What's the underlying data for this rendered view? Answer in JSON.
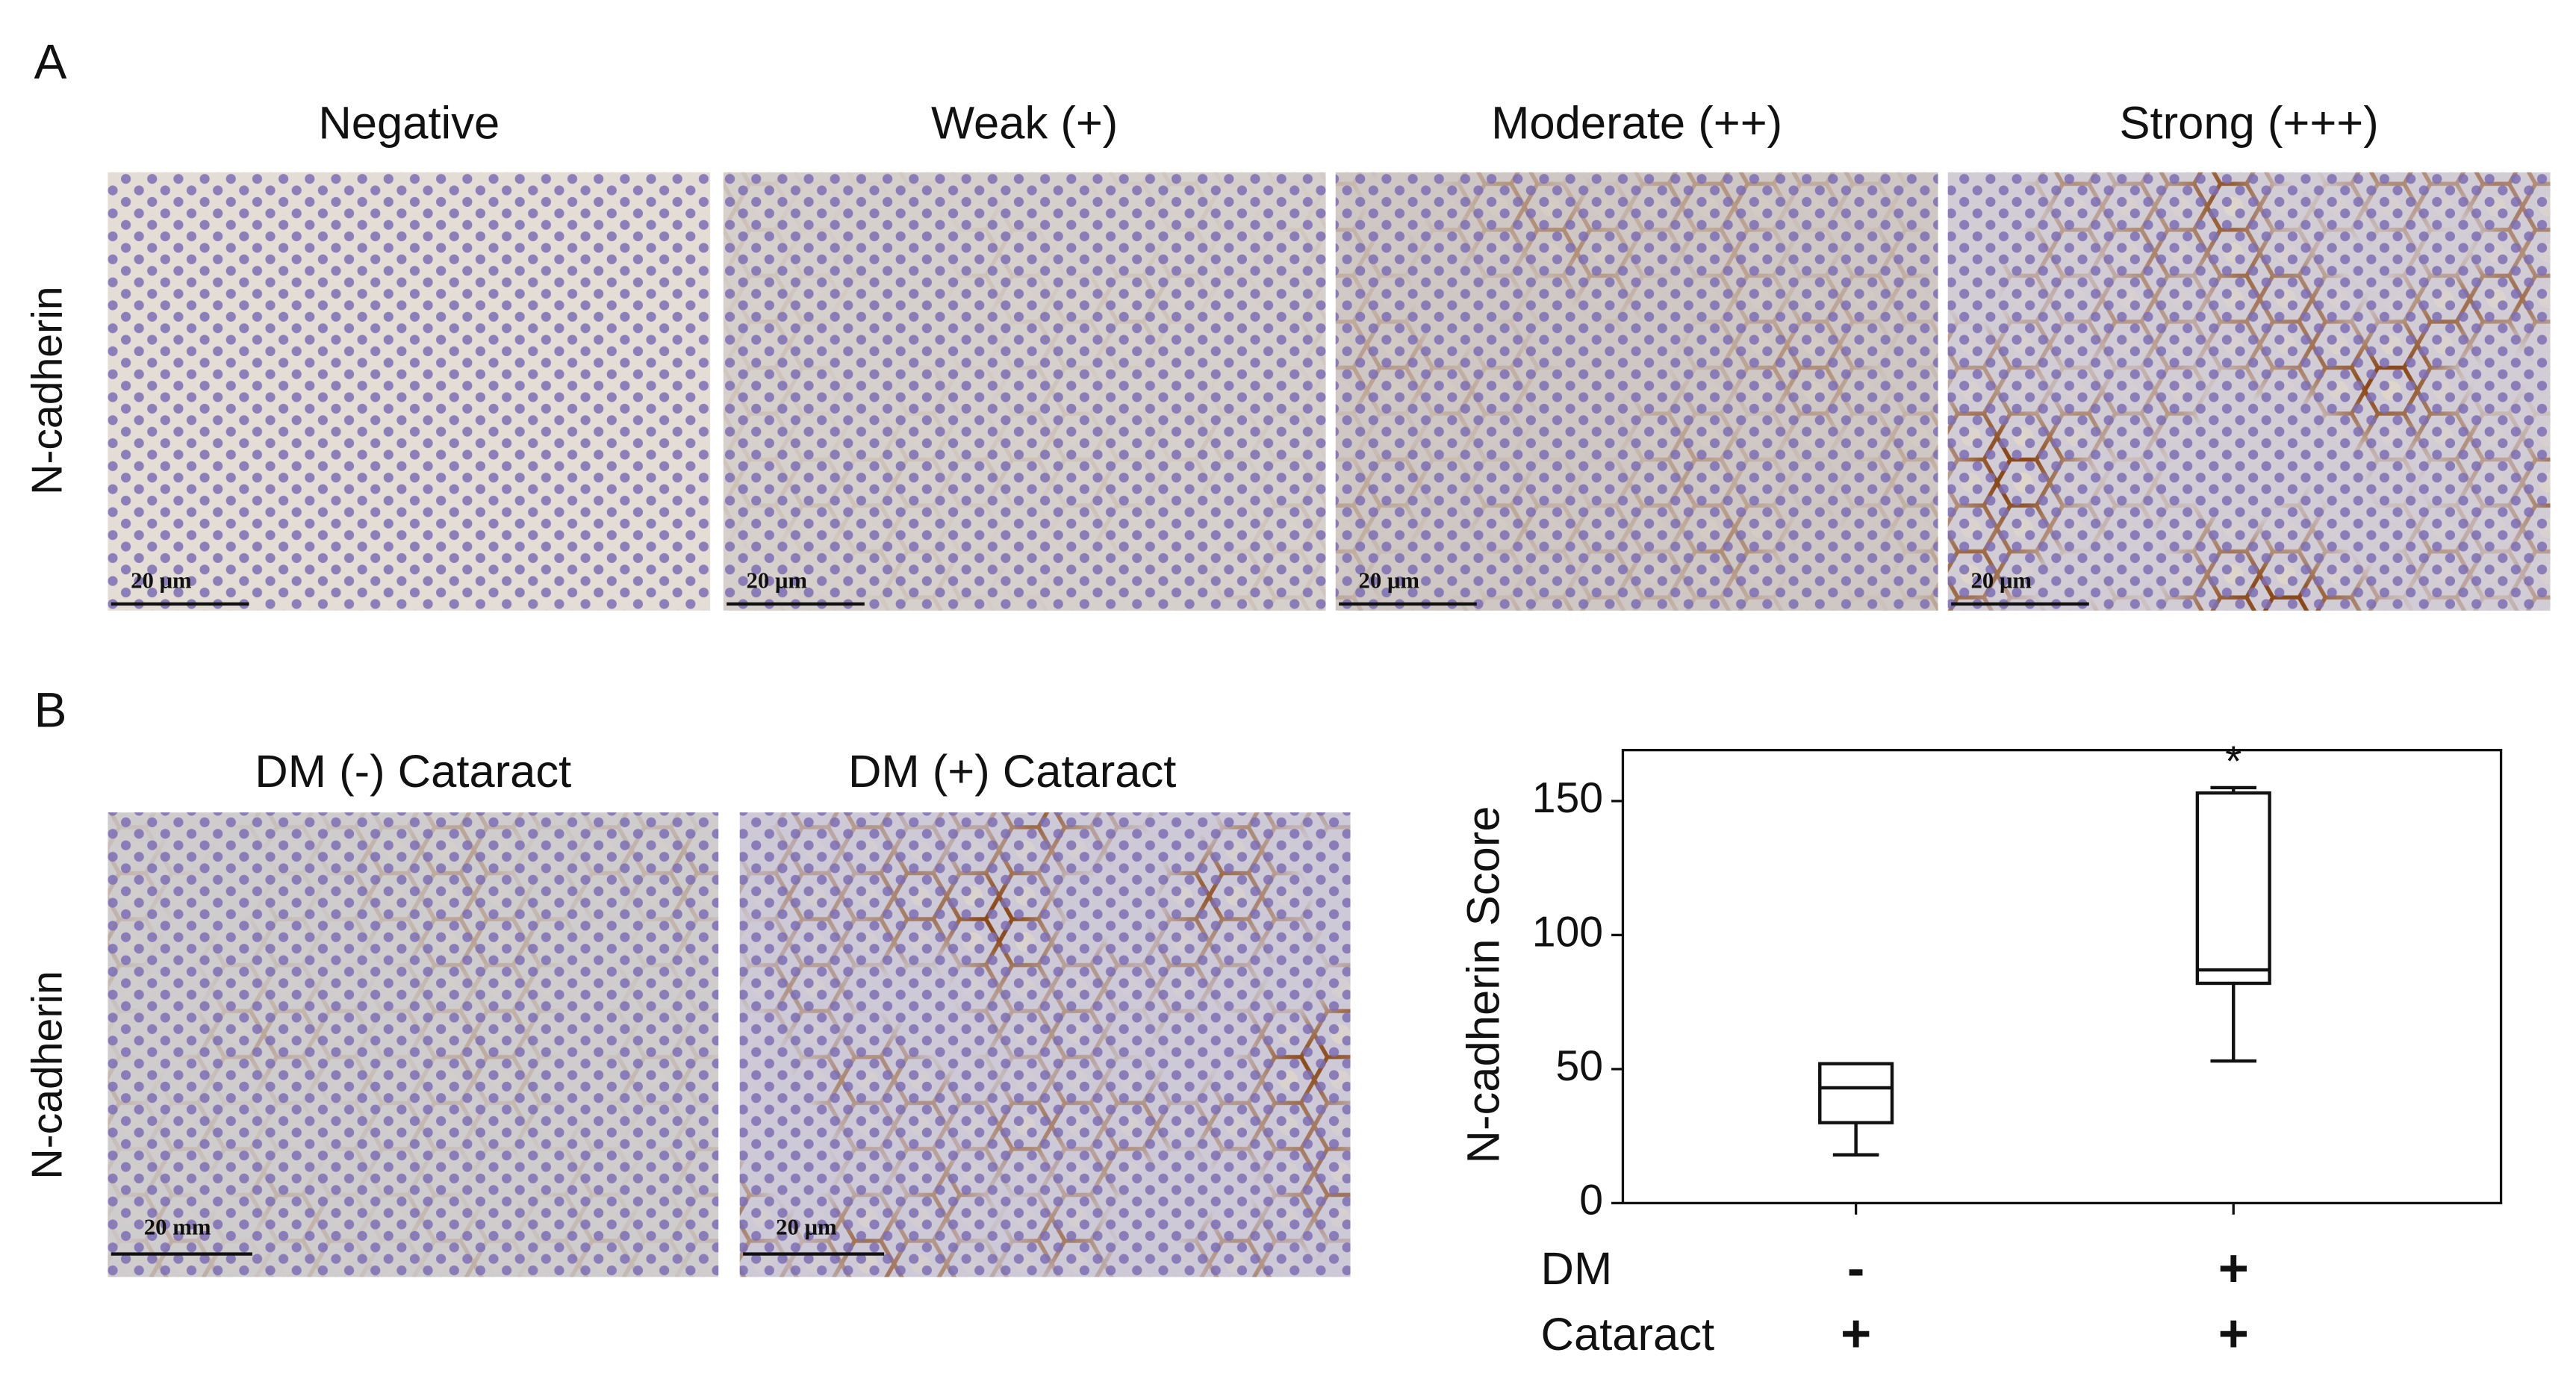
{
  "figure": {
    "panel_a": {
      "label": "A",
      "row_label": "N-cadherin",
      "images": [
        {
          "title": "Negative",
          "scale_bar": "20 μm"
        },
        {
          "title": "Weak (+)",
          "scale_bar": "20 μm"
        },
        {
          "title": "Moderate (++)",
          "scale_bar": "20 μm"
        },
        {
          "title": "Strong (+++)",
          "scale_bar": "20 μm"
        }
      ]
    },
    "panel_b": {
      "label": "B",
      "row_label": "N-cadherin",
      "images": [
        {
          "title": "DM (-) Cataract",
          "scale_bar": "20 mm"
        },
        {
          "title": "DM (+) Cataract",
          "scale_bar": "20 μm"
        }
      ]
    }
  },
  "chart_data": {
    "type": "box",
    "y_label": "N-cadherin Score",
    "ylim": [
      0,
      169
    ],
    "yticks": [
      0,
      50,
      100,
      150
    ],
    "row_labels": [
      "DM",
      "Cataract"
    ],
    "groups": [
      {
        "labels": [
          "-",
          "+"
        ],
        "whisker_low": 18,
        "q1": 30,
        "median": 43,
        "q3": 52,
        "whisker_high": 52
      },
      {
        "labels": [
          "+",
          "+"
        ],
        "whisker_low": 53,
        "q1": 82,
        "median": 87,
        "q3": 153,
        "whisker_high": 155,
        "annotation": "*"
      }
    ]
  }
}
